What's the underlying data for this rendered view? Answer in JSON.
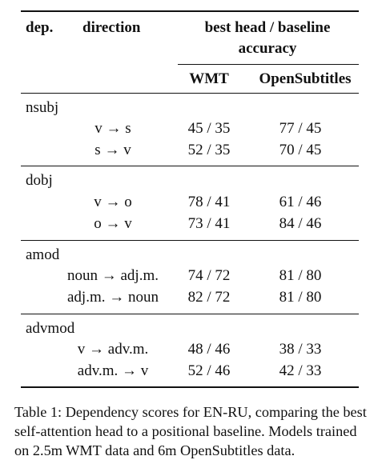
{
  "header": {
    "dep": "dep.",
    "direction": "direction",
    "group_line1": "best head / baseline",
    "group_line2": "accuracy",
    "wmt": "WMT",
    "opensubtitles": "OpenSubtitles"
  },
  "groups": [
    {
      "name": "nsubj",
      "rows": [
        {
          "direction": "v → s",
          "wmt": "45 / 35",
          "os": "77 / 45"
        },
        {
          "direction": "s → v",
          "wmt": "52 / 35",
          "os": "70 / 45"
        }
      ]
    },
    {
      "name": "dobj",
      "rows": [
        {
          "direction": "v → o",
          "wmt": "78 / 41",
          "os": "61 / 46"
        },
        {
          "direction": "o → v",
          "wmt": "73 / 41",
          "os": "84 / 46"
        }
      ]
    },
    {
      "name": "amod",
      "rows": [
        {
          "direction": "noun → adj.m.",
          "wmt": "74 / 72",
          "os": "81 / 80"
        },
        {
          "direction": "adj.m. → noun",
          "wmt": "82 / 72",
          "os": "81 / 80"
        }
      ]
    },
    {
      "name": "advmod",
      "rows": [
        {
          "direction": "v → adv.m.",
          "wmt": "48 / 46",
          "os": "38 / 33"
        },
        {
          "direction": "adv.m. → v",
          "wmt": "52 / 46",
          "os": "42 / 33"
        }
      ]
    }
  ],
  "caption": "Table 1: Dependency scores for EN-RU, comparing the best self-attention head to a positional baseline. Models trained on 2.5m WMT data and 6m OpenSubtitles data."
}
